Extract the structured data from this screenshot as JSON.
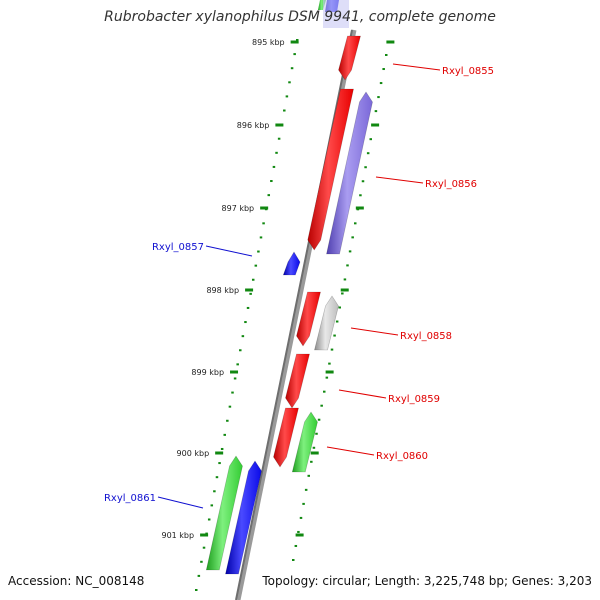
{
  "title": "Rubrobacter xylanophilus DSM 9941, complete genome",
  "footer": {
    "accession": "Accession: NC_008148",
    "summary": "Topology: circular; Length: 3,225,748 bp; Genes: 3,203"
  },
  "colors": {
    "forward_label": "#e00000",
    "reverse_label": "#1010d0",
    "tick": "#118811",
    "backbone": "#808080",
    "gene_red": "#ee0000",
    "gene_blue": "#0a0ae8",
    "gene_green": "#33cc33",
    "gene_purple": "#7a68d8",
    "gene_grey": "#bdbdbd"
  },
  "ticks": [
    {
      "label": "895 kbp"
    },
    {
      "label": "896 kbp"
    },
    {
      "label": "897 kbp"
    },
    {
      "label": "898 kbp"
    },
    {
      "label": "899 kbp"
    },
    {
      "label": "900 kbp"
    },
    {
      "label": "901 kbp"
    }
  ],
  "genes": [
    {
      "label": "Rxyl_0855",
      "strand": "forward"
    },
    {
      "label": "Rxyl_0856",
      "strand": "forward"
    },
    {
      "label": "Rxyl_0857",
      "strand": "reverse"
    },
    {
      "label": "Rxyl_0858",
      "strand": "forward"
    },
    {
      "label": "Rxyl_0859",
      "strand": "forward"
    },
    {
      "label": "Rxyl_0860",
      "strand": "forward"
    },
    {
      "label": "Rxyl_0861",
      "strand": "reverse"
    }
  ]
}
